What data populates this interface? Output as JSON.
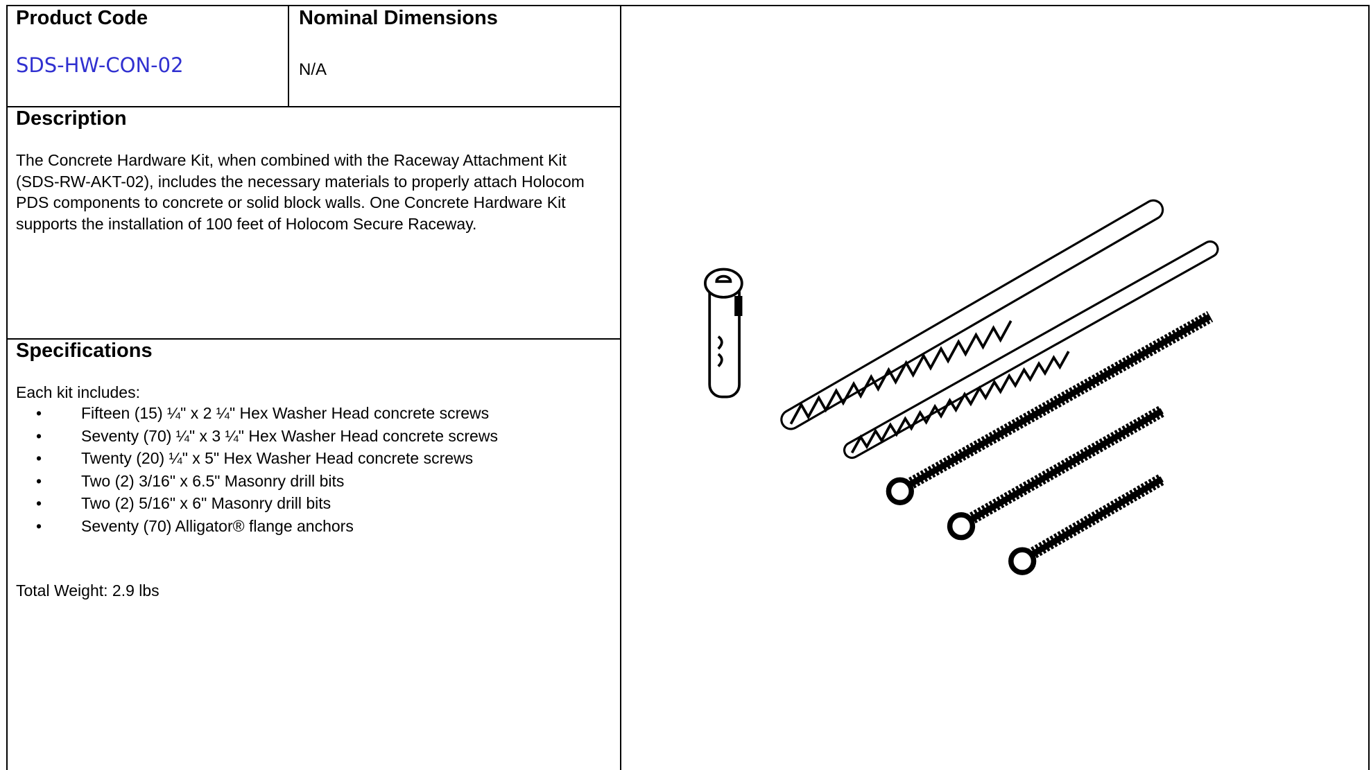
{
  "product_code": {
    "label": "Product Code",
    "value": "SDS-HW-CON-02"
  },
  "nominal_dimensions": {
    "label": "Nominal Dimensions",
    "value": "N/A"
  },
  "description": {
    "heading": "Description",
    "text": "The Concrete Hardware Kit, when combined with the Raceway Attachment Kit (SDS-RW-AKT-02), includes the necessary materials to properly attach Holocom PDS components to concrete or solid block walls. One Concrete Hardware Kit supports the installation of 100 feet of Holocom Secure Raceway."
  },
  "specifications": {
    "heading": "Specifications",
    "intro": "Each kit includes:",
    "items": [
      "Fifteen (15) ¼\" x 2 ¼\" Hex Washer Head concrete screws",
      "Seventy (70) ¼\" x 3 ¼\" Hex Washer Head concrete screws",
      "Twenty (20) ¼\" x 5\" Hex Washer Head concrete screws",
      "Two (2) 3/16\" x 6.5\" Masonry drill bits",
      "Two (2) 5/16\" x 6\" Masonry drill bits",
      "Seventy (70) Alligator® flange anchors"
    ],
    "total_weight": "Total Weight: 2.9 lbs"
  }
}
